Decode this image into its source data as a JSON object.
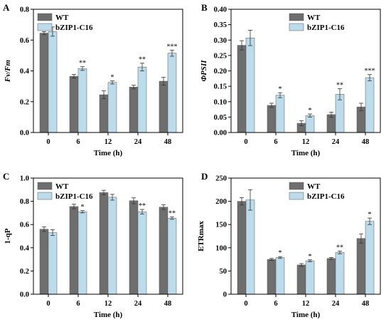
{
  "panels": [
    {
      "panel_label": "A",
      "chart_data": {
        "type": "bar",
        "categories": [
          "0",
          "6",
          "12",
          "24",
          "48"
        ],
        "xlabel": "Time (h)",
        "ylabel": "Fv/Fm",
        "ylim": [
          0,
          0.8
        ],
        "yticks": [
          0.0,
          0.2,
          0.4,
          0.6,
          0.8
        ],
        "ytick_labels": [
          "0.0",
          "0.2",
          "0.4",
          "0.6",
          "0.8"
        ],
        "legend_position": "top-left",
        "series": [
          {
            "name": "WT",
            "color": "#6e6e6e",
            "values": [
              0.645,
              0.365,
              0.245,
              0.295,
              0.333
            ],
            "errors": [
              0.01,
              0.012,
              0.025,
              0.012,
              0.025
            ]
          },
          {
            "name": "bZIP1-C16",
            "color": "#bcdcec",
            "values": [
              0.655,
              0.415,
              0.325,
              0.425,
              0.515
            ],
            "errors": [
              0.03,
              0.012,
              0.01,
              0.025,
              0.02
            ]
          }
        ],
        "significance": [
          "",
          "**",
          "*",
          "**",
          "***"
        ]
      }
    },
    {
      "panel_label": "B",
      "chart_data": {
        "type": "bar",
        "categories": [
          "0",
          "6",
          "12",
          "24",
          "48"
        ],
        "xlabel": "Time (h)",
        "ylabel": "ΦPSII",
        "ylim": [
          0,
          0.4
        ],
        "yticks": [
          0.0,
          0.05,
          0.1,
          0.15,
          0.2,
          0.25,
          0.3,
          0.35,
          0.4
        ],
        "ytick_labels": [
          "0.00",
          "0.05",
          "0.10",
          "0.15",
          "0.20",
          "0.25",
          "0.30",
          "0.35",
          "0.40"
        ],
        "legend_position": "top-right",
        "series": [
          {
            "name": "WT",
            "color": "#6e6e6e",
            "values": [
              0.283,
              0.088,
              0.03,
              0.058,
              0.083
            ],
            "errors": [
              0.015,
              0.007,
              0.008,
              0.008,
              0.012
            ]
          },
          {
            "name": "bZIP1-C16",
            "color": "#bcdcec",
            "values": [
              0.307,
              0.121,
              0.055,
              0.124,
              0.178
            ],
            "errors": [
              0.025,
              0.008,
              0.005,
              0.018,
              0.01
            ]
          }
        ],
        "significance": [
          "",
          "*",
          "*",
          "**",
          "***"
        ]
      }
    },
    {
      "panel_label": "C",
      "chart_data": {
        "type": "bar",
        "categories": [
          "0",
          "6",
          "12",
          "24",
          "48"
        ],
        "xlabel": "Time (h)",
        "ylabel": "1-qP",
        "ylim": [
          0,
          1.0
        ],
        "yticks": [
          0.0,
          0.2,
          0.4,
          0.6,
          0.8,
          1.0
        ],
        "ytick_labels": [
          "0.0",
          "0.2",
          "0.4",
          "0.6",
          "0.8",
          "1.0"
        ],
        "legend_position": "top-left",
        "series": [
          {
            "name": "WT",
            "color": "#6e6e6e",
            "values": [
              0.56,
              0.755,
              0.875,
              0.805,
              0.75
            ],
            "errors": [
              0.02,
              0.02,
              0.02,
              0.025,
              0.02
            ]
          },
          {
            "name": "bZIP1-C16",
            "color": "#bcdcec",
            "values": [
              0.53,
              0.71,
              0.835,
              0.71,
              0.655
            ],
            "errors": [
              0.025,
              0.01,
              0.025,
              0.02,
              0.01
            ]
          }
        ],
        "significance": [
          "",
          "*",
          "",
          "**",
          "**"
        ]
      }
    },
    {
      "panel_label": "D",
      "chart_data": {
        "type": "bar",
        "categories": [
          "0",
          "6",
          "12",
          "24",
          "48"
        ],
        "xlabel": "Time (h)",
        "ylabel": "ETRmax",
        "ylim": [
          0,
          250
        ],
        "yticks": [
          0,
          50,
          100,
          150,
          200,
          250
        ],
        "ytick_labels": [
          "0",
          "50",
          "100",
          "150",
          "200",
          "250"
        ],
        "legend_position": "top-right",
        "series": [
          {
            "name": "WT",
            "color": "#6e6e6e",
            "values": [
              200,
              75,
              63,
              77,
              120
            ],
            "errors": [
              8,
              2,
              3,
              2,
              10
            ]
          },
          {
            "name": "bZIP1-C16",
            "color": "#bcdcec",
            "values": [
              203,
              79,
              72,
              90,
              157
            ],
            "errors": [
              22,
              2,
              2,
              3,
              7
            ]
          }
        ],
        "significance": [
          "",
          "*",
          "*",
          "**",
          "*"
        ]
      }
    }
  ]
}
